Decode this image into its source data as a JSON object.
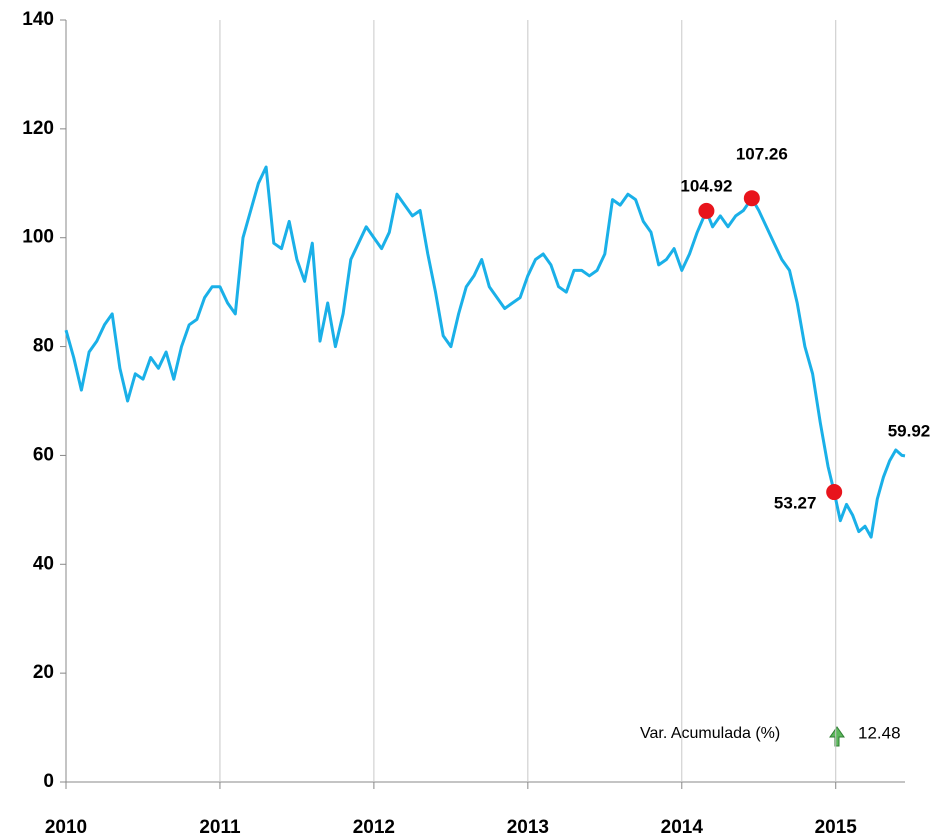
{
  "chart_data": {
    "type": "line",
    "x": [
      2010.0,
      2010.05,
      2010.1,
      2010.15,
      2010.2,
      2010.25,
      2010.3,
      2010.35,
      2010.4,
      2010.45,
      2010.5,
      2010.55,
      2010.6,
      2010.65,
      2010.7,
      2010.75,
      2010.8,
      2010.85,
      2010.9,
      2010.95,
      2011.0,
      2011.05,
      2011.1,
      2011.15,
      2011.2,
      2011.25,
      2011.3,
      2011.35,
      2011.4,
      2011.45,
      2011.5,
      2011.55,
      2011.6,
      2011.65,
      2011.7,
      2011.75,
      2011.8,
      2011.85,
      2011.9,
      2011.95,
      2012.0,
      2012.05,
      2012.1,
      2012.15,
      2012.2,
      2012.25,
      2012.3,
      2012.35,
      2012.4,
      2012.45,
      2012.5,
      2012.55,
      2012.6,
      2012.65,
      2012.7,
      2012.75,
      2012.8,
      2012.85,
      2012.9,
      2012.95,
      2013.0,
      2013.05,
      2013.1,
      2013.15,
      2013.2,
      2013.25,
      2013.3,
      2013.35,
      2013.4,
      2013.45,
      2013.5,
      2013.55,
      2013.6,
      2013.65,
      2013.7,
      2013.75,
      2013.8,
      2013.85,
      2013.9,
      2013.95,
      2014.0,
      2014.05,
      2014.1,
      2014.16,
      2014.2,
      2014.25,
      2014.3,
      2014.35,
      2014.4,
      2014.455,
      2014.5,
      2014.55,
      2014.6,
      2014.65,
      2014.7,
      2014.75,
      2014.8,
      2014.85,
      2014.9,
      2014.95,
      2014.99,
      2015.03,
      2015.07,
      2015.11,
      2015.15,
      2015.19,
      2015.23,
      2015.27,
      2015.31,
      2015.35,
      2015.39,
      2015.43,
      2015.45
    ],
    "series": [
      {
        "color": "#1ab0e8",
        "values": [
          83,
          78,
          72,
          79,
          81,
          84,
          86,
          76,
          70,
          75,
          74,
          78,
          76,
          79,
          74,
          80,
          84,
          85,
          89,
          91,
          91,
          88,
          86,
          100,
          105,
          110,
          113,
          99,
          98,
          103,
          96,
          92,
          99,
          81,
          88,
          80,
          86,
          96,
          99,
          102,
          100,
          98,
          101,
          108,
          106,
          104,
          105,
          97,
          90,
          82,
          80,
          86,
          91,
          93,
          96,
          91,
          89,
          87,
          88,
          89,
          93,
          96,
          97,
          95,
          91,
          90,
          94,
          94,
          93,
          94,
          97,
          107,
          106,
          108,
          107,
          103,
          101,
          95,
          96,
          98,
          94,
          97,
          101,
          104.92,
          102,
          104,
          102,
          104,
          105,
          107.26,
          105,
          102,
          99,
          96,
          94,
          88,
          80,
          75,
          66,
          58,
          53.27,
          48,
          51,
          49,
          46,
          47,
          45,
          52,
          56,
          59,
          61,
          60,
          59.92
        ]
      }
    ],
    "highlights": [
      {
        "x": 2014.16,
        "value": 104.92
      },
      {
        "x": 2014.455,
        "value": 107.26
      },
      {
        "x": 2014.99,
        "value": 53.27
      }
    ],
    "highlight_color": "#e8141c",
    "xlim": [
      2010,
      2015.45
    ],
    "xticks": [
      2010,
      2011,
      2012,
      2013,
      2014,
      2015
    ],
    "ylim": [
      0,
      140
    ],
    "yticks": [
      0,
      20,
      40,
      60,
      80,
      100,
      120,
      140
    ],
    "grid": "x",
    "summary": {
      "label": "Var. Acumulada (%)",
      "value": 12.48
    }
  }
}
